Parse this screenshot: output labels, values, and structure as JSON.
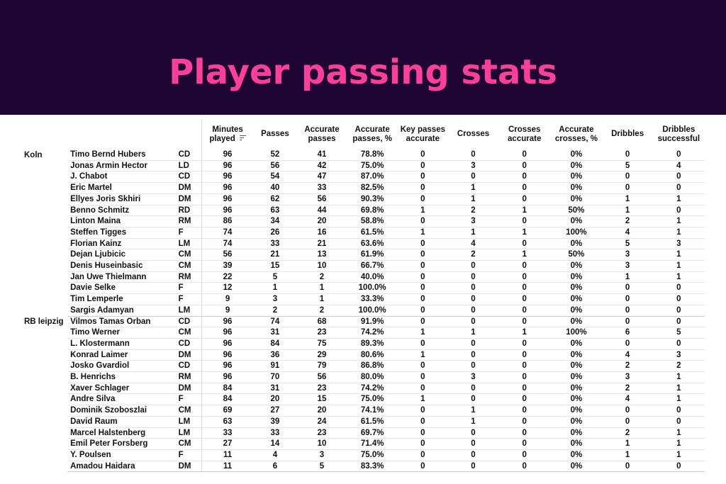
{
  "title": "Player passing stats",
  "colors": {
    "banner_bg": "#1e0533",
    "title": "#ff3f9a"
  },
  "columns": [
    "Minutes played",
    "Passes",
    "Accurate passes",
    "Accurate passes, %",
    "Key passes accurate",
    "Crosses",
    "Crosses accurate",
    "Accurate crosses, %",
    "Dribbles",
    "Dribbles successful"
  ],
  "sort_icon": "sort-lines-icon",
  "teams": [
    {
      "name": "Koln",
      "players": [
        {
          "name": "Timo Bernd Hubers",
          "pos": "CD",
          "stats": [
            "96",
            "52",
            "41",
            "78.8%",
            "0",
            "0",
            "0",
            "0%",
            "0",
            "0"
          ]
        },
        {
          "name": "Jonas Armin Hector",
          "pos": "LD",
          "stats": [
            "96",
            "56",
            "42",
            "75.0%",
            "0",
            "3",
            "0",
            "0%",
            "5",
            "4"
          ]
        },
        {
          "name": "J. Chabot",
          "pos": "CD",
          "stats": [
            "96",
            "54",
            "47",
            "87.0%",
            "0",
            "0",
            "0",
            "0%",
            "0",
            "0"
          ]
        },
        {
          "name": "Eric Martel",
          "pos": "DM",
          "stats": [
            "96",
            "40",
            "33",
            "82.5%",
            "0",
            "1",
            "0",
            "0%",
            "0",
            "0"
          ]
        },
        {
          "name": "Ellyes Joris Skhiri",
          "pos": "DM",
          "stats": [
            "96",
            "62",
            "56",
            "90.3%",
            "0",
            "1",
            "0",
            "0%",
            "1",
            "1"
          ]
        },
        {
          "name": "Benno Schmitz",
          "pos": "RD",
          "stats": [
            "96",
            "63",
            "44",
            "69.8%",
            "1",
            "2",
            "1",
            "50%",
            "1",
            "0"
          ]
        },
        {
          "name": "Linton Maina",
          "pos": "RM",
          "stats": [
            "86",
            "34",
            "20",
            "58.8%",
            "0",
            "3",
            "0",
            "0%",
            "2",
            "1"
          ]
        },
        {
          "name": "Steffen Tigges",
          "pos": "F",
          "stats": [
            "74",
            "26",
            "16",
            "61.5%",
            "1",
            "1",
            "1",
            "100%",
            "4",
            "1"
          ]
        },
        {
          "name": "Florian Kainz",
          "pos": "LM",
          "stats": [
            "74",
            "33",
            "21",
            "63.6%",
            "0",
            "4",
            "0",
            "0%",
            "5",
            "3"
          ]
        },
        {
          "name": "Dejan Ljubicic",
          "pos": "CM",
          "stats": [
            "56",
            "21",
            "13",
            "61.9%",
            "0",
            "2",
            "1",
            "50%",
            "3",
            "1"
          ]
        },
        {
          "name": "Denis Huseinbasic",
          "pos": "CM",
          "stats": [
            "39",
            "15",
            "10",
            "66.7%",
            "0",
            "0",
            "0",
            "0%",
            "3",
            "1"
          ]
        },
        {
          "name": "Jan Uwe Thielmann",
          "pos": "RM",
          "stats": [
            "22",
            "5",
            "2",
            "40.0%",
            "0",
            "0",
            "0",
            "0%",
            "1",
            "1"
          ]
        },
        {
          "name": "Davie Selke",
          "pos": "F",
          "stats": [
            "12",
            "1",
            "1",
            "100.0%",
            "0",
            "0",
            "0",
            "0%",
            "0",
            "0"
          ]
        },
        {
          "name": "Tim Lemperle",
          "pos": "F",
          "stats": [
            "9",
            "3",
            "1",
            "33.3%",
            "0",
            "0",
            "0",
            "0%",
            "0",
            "0"
          ]
        },
        {
          "name": "Sargis Adamyan",
          "pos": "LM",
          "stats": [
            "9",
            "2",
            "2",
            "100.0%",
            "0",
            "0",
            "0",
            "0%",
            "0",
            "0"
          ]
        }
      ]
    },
    {
      "name": "RB leipzig",
      "players": [
        {
          "name": "Vilmos Tamas Orban",
          "pos": "CD",
          "stats": [
            "96",
            "74",
            "68",
            "91.9%",
            "0",
            "0",
            "0",
            "0%",
            "0",
            "0"
          ]
        },
        {
          "name": "Timo Werner",
          "pos": "CM",
          "stats": [
            "96",
            "31",
            "23",
            "74.2%",
            "1",
            "1",
            "1",
            "100%",
            "6",
            "5"
          ]
        },
        {
          "name": "L. Klostermann",
          "pos": "CD",
          "stats": [
            "96",
            "84",
            "75",
            "89.3%",
            "0",
            "0",
            "0",
            "0%",
            "0",
            "0"
          ]
        },
        {
          "name": "Konrad Laimer",
          "pos": "DM",
          "stats": [
            "96",
            "36",
            "29",
            "80.6%",
            "1",
            "0",
            "0",
            "0%",
            "4",
            "3"
          ]
        },
        {
          "name": "Josko Gvardiol",
          "pos": "CD",
          "stats": [
            "96",
            "91",
            "79",
            "86.8%",
            "0",
            "0",
            "0",
            "0%",
            "2",
            "2"
          ]
        },
        {
          "name": "B. Henrichs",
          "pos": "RM",
          "stats": [
            "96",
            "70",
            "56",
            "80.0%",
            "0",
            "3",
            "0",
            "0%",
            "3",
            "1"
          ]
        },
        {
          "name": "Xaver Schlager",
          "pos": "DM",
          "stats": [
            "84",
            "31",
            "23",
            "74.2%",
            "0",
            "0",
            "0",
            "0%",
            "2",
            "1"
          ]
        },
        {
          "name": "Andre Silva",
          "pos": "F",
          "stats": [
            "84",
            "20",
            "15",
            "75.0%",
            "1",
            "0",
            "0",
            "0%",
            "4",
            "1"
          ]
        },
        {
          "name": "Dominik Szoboszlai",
          "pos": "CM",
          "stats": [
            "69",
            "27",
            "20",
            "74.1%",
            "0",
            "1",
            "0",
            "0%",
            "0",
            "0"
          ]
        },
        {
          "name": "David Raum",
          "pos": "LM",
          "stats": [
            "63",
            "39",
            "24",
            "61.5%",
            "0",
            "1",
            "0",
            "0%",
            "0",
            "0"
          ]
        },
        {
          "name": "Marcel Halstenberg",
          "pos": "LM",
          "stats": [
            "33",
            "33",
            "23",
            "69.7%",
            "0",
            "0",
            "0",
            "0%",
            "2",
            "1"
          ]
        },
        {
          "name": "Emil Peter Forsberg",
          "pos": "CM",
          "stats": [
            "27",
            "14",
            "10",
            "71.4%",
            "0",
            "0",
            "0",
            "0%",
            "1",
            "1"
          ]
        },
        {
          "name": "Y. Poulsen",
          "pos": "F",
          "stats": [
            "11",
            "4",
            "3",
            "75.0%",
            "0",
            "0",
            "0",
            "0%",
            "1",
            "1"
          ]
        },
        {
          "name": "Amadou Haidara",
          "pos": "DM",
          "stats": [
            "11",
            "6",
            "5",
            "83.3%",
            "0",
            "0",
            "0",
            "0%",
            "0",
            "0"
          ]
        }
      ]
    }
  ]
}
